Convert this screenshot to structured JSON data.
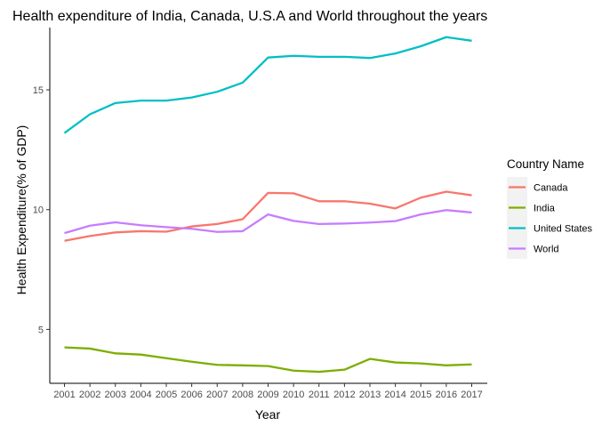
{
  "chart_data": {
    "type": "line",
    "title": "Health expenditure of India, Canada, U.S.A and World throughout the years",
    "xlabel": "Year",
    "ylabel": "Health Expenditure(% of GDP)",
    "x": [
      "2001",
      "2002",
      "2003",
      "2004",
      "2005",
      "2006",
      "2007",
      "2008",
      "2009",
      "2010",
      "2011",
      "2012",
      "2013",
      "2014",
      "2015",
      "2016",
      "2017"
    ],
    "ylim": [
      2.75,
      17.6
    ],
    "yticks": [
      5,
      10,
      15
    ],
    "grid": false,
    "legend": {
      "title": "Country Name",
      "position": "right"
    },
    "series": [
      {
        "name": "Canada",
        "color": "#F8766D",
        "values": [
          8.7,
          8.9,
          9.05,
          9.1,
          9.08,
          9.3,
          9.4,
          9.6,
          10.7,
          10.68,
          10.35,
          10.35,
          10.25,
          10.05,
          10.5,
          10.75,
          10.6
        ]
      },
      {
        "name": "India",
        "color": "#7CAE00",
        "values": [
          4.25,
          4.2,
          4.0,
          3.95,
          3.8,
          3.65,
          3.52,
          3.5,
          3.47,
          3.28,
          3.23,
          3.32,
          3.77,
          3.62,
          3.58,
          3.5,
          3.54
        ]
      },
      {
        "name": "United States",
        "color": "#00BFC4",
        "values": [
          13.2,
          13.98,
          14.45,
          14.55,
          14.55,
          14.68,
          14.92,
          15.3,
          16.35,
          16.42,
          16.38,
          16.38,
          16.33,
          16.52,
          16.82,
          17.2,
          17.05
        ]
      },
      {
        "name": "World",
        "color": "#C77CFF",
        "values": [
          9.02,
          9.33,
          9.47,
          9.35,
          9.27,
          9.2,
          9.07,
          9.1,
          9.8,
          9.53,
          9.4,
          9.42,
          9.46,
          9.52,
          9.8,
          9.98,
          9.88
        ]
      }
    ]
  }
}
